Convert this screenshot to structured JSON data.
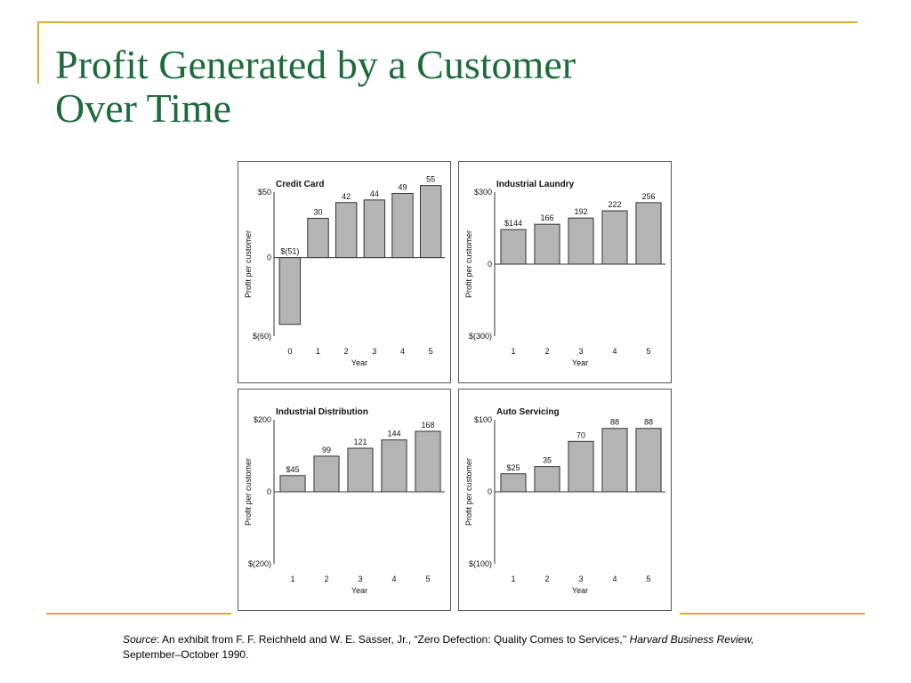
{
  "slide": {
    "title_line1": "Profit Generated by a Customer",
    "title_line2": "Over Time",
    "source_label": "Source",
    "source_text": ": An exhibit from F. F. Reichheld and W. E. Sasser, Jr., “Zero Defection: Quality Comes to Services,’’ ",
    "source_journal": "Harvard Business Review,",
    "source_date": " September–October 1990."
  },
  "colors": {
    "title": "#1d6b3a",
    "accent": "#d8ae2e",
    "bar_fill": "#b4b4b4",
    "bar_stroke": "#333333"
  },
  "chart_data": [
    {
      "type": "bar",
      "title": "Credit Card",
      "xlabel": "Year",
      "ylabel": "Profit per customer",
      "ylim": [
        -60,
        50
      ],
      "yticks": [
        {
          "value": 50,
          "label": "$50"
        },
        {
          "value": 0,
          "label": "0"
        },
        {
          "value": -60,
          "label": "$(60)"
        }
      ],
      "categories": [
        "0",
        "1",
        "2",
        "3",
        "4",
        "5"
      ],
      "values": [
        -51,
        30,
        42,
        44,
        49,
        55
      ],
      "data_labels": [
        "$(51)",
        "30",
        "42",
        "44",
        "49",
        "55"
      ]
    },
    {
      "type": "bar",
      "title": "Industrial Laundry",
      "xlabel": "Year",
      "ylabel": "Profit per customer",
      "ylim": [
        -300,
        300
      ],
      "yticks": [
        {
          "value": 300,
          "label": "$300"
        },
        {
          "value": 0,
          "label": "0"
        },
        {
          "value": -300,
          "label": "$(300)"
        }
      ],
      "categories": [
        "1",
        "2",
        "3",
        "4",
        "5"
      ],
      "values": [
        144,
        166,
        192,
        222,
        256
      ],
      "data_labels": [
        "$144",
        "166",
        "192",
        "222",
        "256"
      ]
    },
    {
      "type": "bar",
      "title": "Industrial Distribution",
      "xlabel": "Year",
      "ylabel": "Profit per customer",
      "ylim": [
        -200,
        200
      ],
      "yticks": [
        {
          "value": 200,
          "label": "$200"
        },
        {
          "value": 0,
          "label": "0"
        },
        {
          "value": -200,
          "label": "$(200)"
        }
      ],
      "categories": [
        "1",
        "2",
        "3",
        "4",
        "5"
      ],
      "values": [
        45,
        99,
        121,
        144,
        168
      ],
      "data_labels": [
        "$45",
        "99",
        "121",
        "144",
        "168"
      ]
    },
    {
      "type": "bar",
      "title": "Auto Servicing",
      "xlabel": "Year",
      "ylabel": "Profit per customer",
      "ylim": [
        -100,
        100
      ],
      "yticks": [
        {
          "value": 100,
          "label": "$100"
        },
        {
          "value": 0,
          "label": "0"
        },
        {
          "value": -100,
          "label": "$(100)"
        }
      ],
      "categories": [
        "1",
        "2",
        "3",
        "4",
        "5"
      ],
      "values": [
        25,
        35,
        70,
        88,
        88
      ],
      "data_labels": [
        "$25",
        "35",
        "70",
        "88",
        "88"
      ]
    }
  ]
}
